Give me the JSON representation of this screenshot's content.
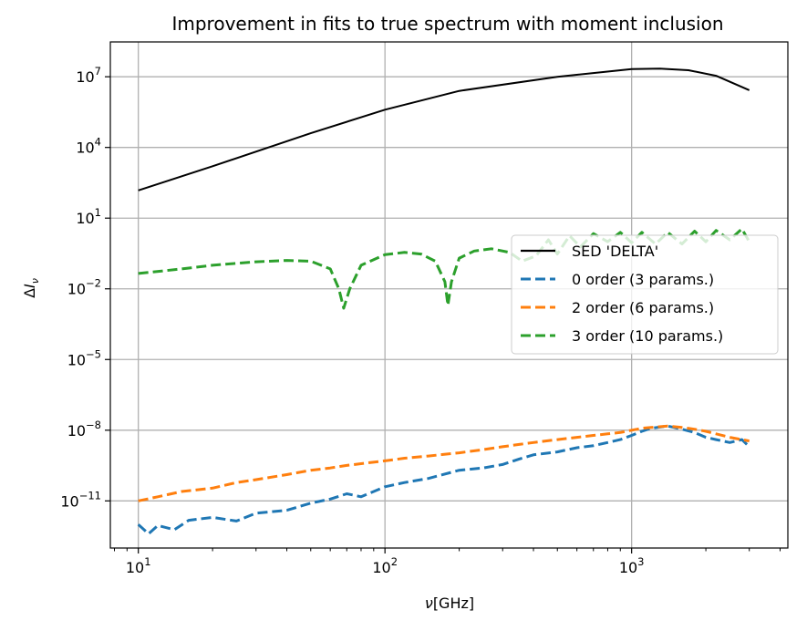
{
  "chart_data": {
    "type": "line",
    "title": "Improvement in fits to true spectrum with moment inclusion",
    "xlabel": {
      "symbol": "ν",
      "unit": "[GHz]"
    },
    "ylabel": {
      "base": "Δ",
      "symbol": "I",
      "subscript": "ν"
    },
    "xscale": "log",
    "yscale": "log",
    "xlim": [
      7.7,
      4300
    ],
    "ylim": [
      1e-13,
      300000000.0
    ],
    "grid": true,
    "legend_position": "center-right",
    "x_ticks": [
      {
        "value": 10,
        "base": "10",
        "exp": "1"
      },
      {
        "value": 100,
        "base": "10",
        "exp": "2"
      },
      {
        "value": 1000,
        "base": "10",
        "exp": "3"
      }
    ],
    "y_ticks": [
      {
        "value": 10000000.0,
        "base": "10",
        "exp": "7"
      },
      {
        "value": 10000.0,
        "base": "10",
        "exp": "4"
      },
      {
        "value": 10.0,
        "base": "10",
        "exp": "1"
      },
      {
        "value": 0.01,
        "base": "10",
        "exp": "−2"
      },
      {
        "value": 1e-05,
        "base": "10",
        "exp": "−5"
      },
      {
        "value": 1e-08,
        "base": "10",
        "exp": "−8"
      },
      {
        "value": 1e-11,
        "base": "10",
        "exp": "−11"
      }
    ],
    "series": [
      {
        "name": "SED 'DELTA'",
        "color": "#000000",
        "style": "solid",
        "x": [
          10,
          20,
          50,
          100,
          200,
          500,
          1000,
          1300,
          1700,
          2200,
          3000
        ],
        "y": [
          150,
          1600,
          40000,
          400000,
          2500000,
          10000000,
          21000000,
          22000000,
          19000000,
          11000000,
          2700000
        ]
      },
      {
        "name": "0 order (3 params.)",
        "color": "#1f77b4",
        "style": "dashed",
        "x": [
          10,
          11,
          12,
          14,
          16,
          20,
          25,
          30,
          40,
          50,
          60,
          70,
          80,
          100,
          120,
          150,
          200,
          250,
          300,
          350,
          400,
          500,
          600,
          700,
          800,
          900,
          1000,
          1100,
          1200,
          1400,
          1600,
          1800,
          2000,
          2200,
          2500,
          2800,
          3000
        ],
        "y": [
          1e-12,
          4e-13,
          9e-13,
          6e-13,
          1.5e-12,
          2e-12,
          1.4e-12,
          3e-12,
          4e-12,
          8e-12,
          1.2e-11,
          2e-11,
          1.5e-11,
          4e-11,
          6e-11,
          9e-11,
          2e-10,
          2.5e-10,
          3.5e-10,
          6e-10,
          9e-10,
          1.2e-09,
          1.8e-09,
          2.2e-09,
          3e-09,
          4e-09,
          6e-09,
          9e-09,
          1.2e-08,
          1.5e-08,
          1.1e-08,
          8e-09,
          5e-09,
          4e-09,
          3e-09,
          4e-09,
          2e-09
        ]
      },
      {
        "name": "2 order (6 params.)",
        "color": "#ff7f0e",
        "style": "dashed",
        "x": [
          10,
          12,
          15,
          20,
          25,
          30,
          40,
          50,
          60,
          70,
          80,
          100,
          120,
          150,
          200,
          250,
          300,
          350,
          400,
          500,
          600,
          700,
          800,
          900,
          1000,
          1100,
          1200,
          1400,
          1600,
          1800,
          2000,
          2200,
          2500,
          2800,
          3000
        ],
        "y": [
          1e-11,
          1.5e-11,
          2.5e-11,
          3.5e-11,
          6e-11,
          8e-11,
          1.3e-10,
          2e-10,
          2.5e-10,
          3.2e-10,
          3.8e-10,
          5e-10,
          6.5e-10,
          8e-10,
          1.1e-09,
          1.5e-09,
          2e-09,
          2.5e-09,
          3e-09,
          4e-09,
          5e-09,
          6e-09,
          7e-09,
          8e-09,
          1e-08,
          1.2e-08,
          1.3e-08,
          1.5e-08,
          1.3e-08,
          1.1e-08,
          9e-09,
          7e-09,
          5e-09,
          4e-09,
          3.5e-09
        ]
      },
      {
        "name": "3 order (10 params.)",
        "color": "#2ca02c",
        "style": "dashed",
        "x": [
          10,
          15,
          20,
          30,
          40,
          50,
          60,
          65,
          68,
          72,
          80,
          100,
          120,
          140,
          160,
          175,
          180,
          186,
          200,
          230,
          270,
          320,
          360,
          410,
          460,
          500,
          560,
          620,
          700,
          800,
          900,
          1000,
          1100,
          1250,
          1400,
          1600,
          1800,
          2000,
          2200,
          2500,
          2800,
          3000
        ],
        "y": [
          0.045,
          0.07,
          0.1,
          0.14,
          0.16,
          0.15,
          0.07,
          0.01,
          0.0015,
          0.01,
          0.1,
          0.28,
          0.35,
          0.3,
          0.15,
          0.02,
          0.002,
          0.02,
          0.2,
          0.4,
          0.5,
          0.35,
          0.15,
          0.25,
          1.2,
          0.3,
          1.8,
          0.6,
          2.2,
          1.0,
          2.5,
          0.9,
          2.5,
          0.8,
          2.5,
          0.8,
          2.8,
          1.0,
          3.0,
          1.2,
          3.5,
          1.0
        ]
      }
    ]
  }
}
